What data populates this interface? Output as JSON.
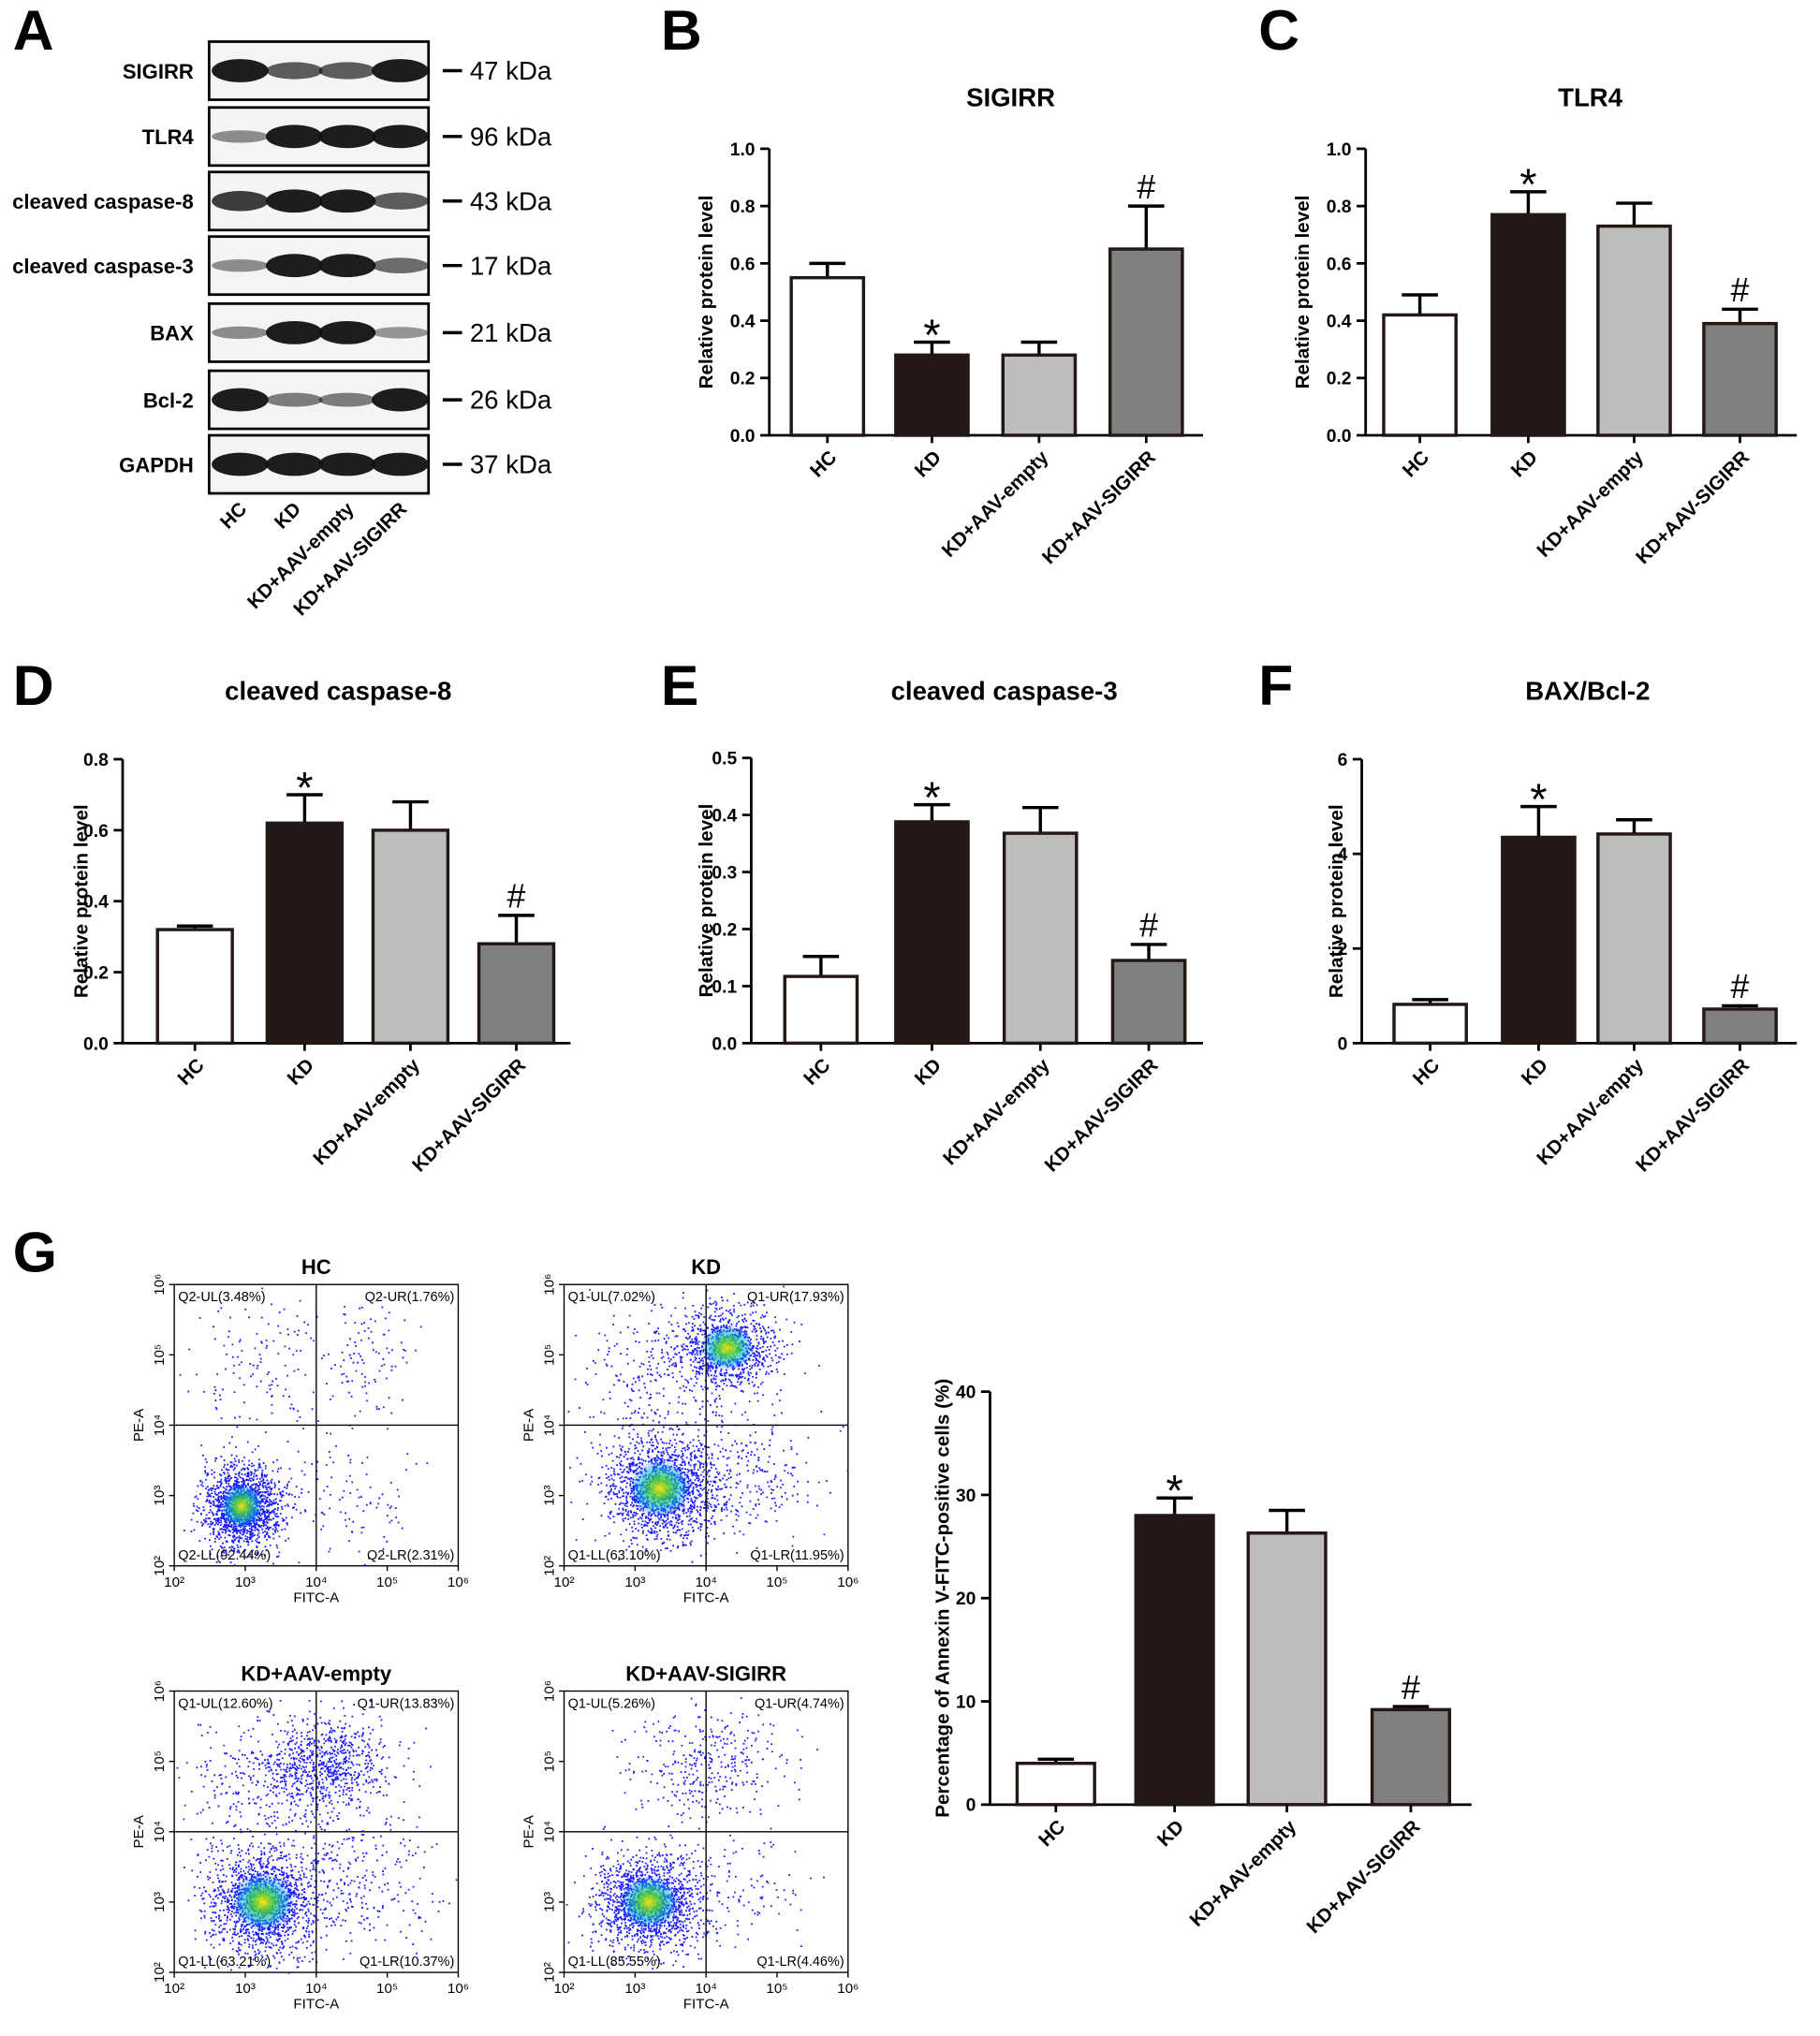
{
  "panel_labels": [
    "A",
    "B",
    "C",
    "D",
    "E",
    "F",
    "G"
  ],
  "blot": {
    "rows": [
      {
        "label": "SIGIRR",
        "size": "47 kDa"
      },
      {
        "label": "TLR4",
        "size": "96 kDa"
      },
      {
        "label": "cleaved caspase-8",
        "size": "43 kDa"
      },
      {
        "label": "cleaved caspase-3",
        "size": "17 kDa"
      },
      {
        "label": "BAX",
        "size": "21 kDa"
      },
      {
        "label": "Bcl-2",
        "size": "26 kDa"
      },
      {
        "label": "GAPDH",
        "size": "37 kDa"
      }
    ],
    "lanes": [
      "HC",
      "KD",
      "KD+AAV-empty",
      "KD+AAV-SIGIRR"
    ]
  },
  "chart_data": [
    {
      "type": "bar",
      "title": "SIGIRR",
      "ylabel": "Relative protein level",
      "categories": [
        "HC",
        "KD",
        "KD+AAV-empty",
        "KD+AAV-SIGIRR"
      ],
      "values": [
        0.55,
        0.28,
        0.28,
        0.65
      ],
      "errors": [
        0.05,
        0.045,
        0.045,
        0.15
      ],
      "colors": [
        "#ffffff",
        "#231815",
        "#bdbdbd",
        "#808080"
      ],
      "annotations": [
        {
          "index": 1,
          "text": "*"
        },
        {
          "index": 3,
          "text": "#"
        }
      ],
      "ylim": [
        0,
        1
      ],
      "yticks": [
        {
          "value": 0,
          "label": "0.0"
        },
        0.2,
        0.4,
        0.6,
        0.8,
        {
          "value": 1,
          "label": "1.0"
        }
      ]
    },
    {
      "type": "bar",
      "title": "TLR4",
      "ylabel": "Relative protein level",
      "categories": [
        "HC",
        "KD",
        "KD+AAV-empty",
        "KD+AAV-SIGIRR"
      ],
      "values": [
        0.42,
        0.77,
        0.73,
        0.39
      ],
      "errors": [
        0.07,
        0.08,
        0.08,
        0.05
      ],
      "colors": [
        "#ffffff",
        "#231815",
        "#bdbdbd",
        "#808080"
      ],
      "annotations": [
        {
          "index": 1,
          "text": "*"
        },
        {
          "index": 3,
          "text": "#"
        }
      ],
      "ylim": [
        0,
        1
      ],
      "yticks": [
        {
          "value": 0,
          "label": "0.0"
        },
        0.2,
        0.4,
        0.6,
        0.8,
        {
          "value": 1,
          "label": "1.0"
        }
      ]
    },
    {
      "type": "bar",
      "title": "cleaved caspase-8",
      "ylabel": "Relative protein level",
      "categories": [
        "HC",
        "KD",
        "KD+AAV-empty",
        "KD+AAV-SIGIRR"
      ],
      "values": [
        0.32,
        0.62,
        0.6,
        0.28
      ],
      "errors": [
        0.01,
        0.08,
        0.08,
        0.08
      ],
      "colors": [
        "#ffffff",
        "#231815",
        "#bdbdbd",
        "#808080"
      ],
      "annotations": [
        {
          "index": 1,
          "text": "*"
        },
        {
          "index": 3,
          "text": "#"
        }
      ],
      "ylim": [
        0,
        0.8
      ],
      "yticks": [
        {
          "value": 0,
          "label": "0.0"
        },
        0.2,
        0.4,
        0.6,
        0.8
      ]
    },
    {
      "type": "bar",
      "title": "cleaved caspase-3",
      "ylabel": "Relative protein level",
      "categories": [
        "HC",
        "KD",
        "KD+AAV-empty",
        "KD+AAV-SIGIRR"
      ],
      "values": [
        0.117,
        0.388,
        0.368,
        0.145
      ],
      "errors": [
        0.035,
        0.03,
        0.045,
        0.028
      ],
      "colors": [
        "#ffffff",
        "#231815",
        "#bdbdbd",
        "#808080"
      ],
      "annotations": [
        {
          "index": 1,
          "text": "*"
        },
        {
          "index": 3,
          "text": "#"
        }
      ],
      "ylim": [
        0,
        0.5
      ],
      "yticks": [
        {
          "value": 0,
          "label": "0.0"
        },
        0.1,
        0.2,
        0.3,
        0.4,
        0.5
      ]
    },
    {
      "type": "bar",
      "title": "BAX/Bcl-2",
      "ylabel": "Relative protein level",
      "categories": [
        "HC",
        "KD",
        "KD+AAV-empty",
        "KD+AAV-SIGIRR"
      ],
      "values": [
        0.82,
        4.35,
        4.42,
        0.72
      ],
      "errors": [
        0.1,
        0.65,
        0.3,
        0.07
      ],
      "colors": [
        "#ffffff",
        "#231815",
        "#bdbdbd",
        "#808080"
      ],
      "annotations": [
        {
          "index": 1,
          "text": "*"
        },
        {
          "index": 3,
          "text": "#"
        }
      ],
      "ylim": [
        0,
        6
      ],
      "yticks": [
        0,
        2,
        4,
        6
      ]
    },
    {
      "type": "bar",
      "ylabel": "Percentage of Annexin V-FITC-positive cells (%)",
      "categories": [
        "HC",
        "KD",
        "KD+AAV-empty",
        "KD+AAV-SIGIRR"
      ],
      "values": [
        4,
        28,
        26.3,
        9.2
      ],
      "errors": [
        0.4,
        1.7,
        2.2,
        0.3
      ],
      "colors": [
        "#ffffff",
        "#231815",
        "#bdbdbd",
        "#808080"
      ],
      "annotations": [
        {
          "index": 1,
          "text": "*"
        },
        {
          "index": 3,
          "text": "#"
        }
      ],
      "ylim": [
        0,
        40
      ],
      "yticks": [
        0,
        10,
        20,
        30,
        40
      ]
    }
  ],
  "flow": {
    "xlabel": "FITC-A",
    "ylabel": "PE-A",
    "scale": "log",
    "lim": [
      100,
      1000000
    ],
    "ticks": [
      {
        "value": 100,
        "label": "10²"
      },
      {
        "value": 1000,
        "label": "10³"
      },
      {
        "value": 10000,
        "label": "10⁴"
      },
      {
        "value": 100000,
        "label": "10⁵"
      },
      {
        "value": 1000000,
        "label": "10⁶"
      }
    ],
    "gate": 10000,
    "plots": [
      {
        "title": "HC",
        "UL": "Q2-UL(3.48%)",
        "UR": "Q2-UR(1.76%)",
        "LL": "Q2-LL(92.44%)",
        "LR": "Q2-LR(2.31%)"
      },
      {
        "title": "KD",
        "UL": "Q1-UL(7.02%)",
        "UR": "Q1-UR(17.93%)",
        "LL": "Q1-LL(63.10%)",
        "LR": "Q1-LR(11.95%)"
      },
      {
        "title": "KD+AAV-empty",
        "UL": "Q1-UL(12.60%)",
        "UR": "Q1-UR(13.83%)",
        "LL": "Q1-LL(63.21%)",
        "LR": "Q1-LR(10.37%)"
      },
      {
        "title": "KD+AAV-SIGIRR",
        "UL": "Q1-UL(5.26%)",
        "UR": "Q1-UR(4.74%)",
        "LL": "Q1-LL(85.55%)",
        "LR": "Q1-LR(4.46%)"
      }
    ]
  }
}
